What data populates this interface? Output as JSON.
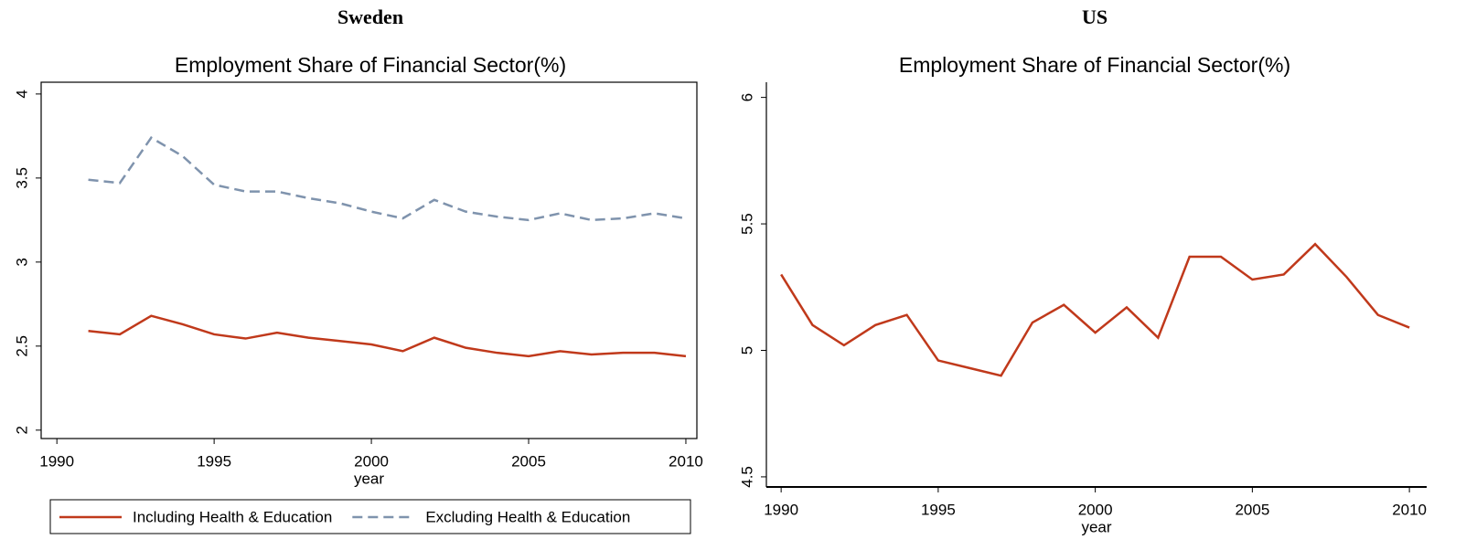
{
  "chart_data": [
    {
      "type": "line",
      "panel_title": "Sweden",
      "title": "Employment Share of Financial Sector(%)",
      "xlabel": "year",
      "x": [
        1991,
        1992,
        1993,
        1994,
        1995,
        1996,
        1997,
        1998,
        1999,
        2000,
        2001,
        2002,
        2003,
        2004,
        2005,
        2006,
        2007,
        2008,
        2009,
        2010
      ],
      "series": [
        {
          "name": "Including Health & Education",
          "color": "#c0391b",
          "dashed": false,
          "values": [
            2.59,
            2.57,
            2.68,
            2.63,
            2.57,
            2.545,
            2.58,
            2.55,
            2.53,
            2.51,
            2.47,
            2.55,
            2.49,
            2.46,
            2.44,
            2.47,
            2.45,
            2.46,
            2.46,
            2.44
          ]
        },
        {
          "name": "Excluding Health & Education",
          "color": "#7f93ad",
          "dashed": true,
          "values": [
            3.49,
            3.47,
            3.74,
            3.63,
            3.46,
            3.42,
            3.42,
            3.38,
            3.35,
            3.3,
            3.26,
            3.37,
            3.3,
            3.27,
            3.25,
            3.29,
            3.25,
            3.26,
            3.29,
            3.26
          ]
        }
      ],
      "xlim": [
        1989.5,
        2010.35
      ],
      "xticks": [
        1990,
        1995,
        2000,
        2005,
        2010
      ],
      "ylim": [
        1.95,
        4.07
      ],
      "yticks": [
        2,
        2.5,
        3,
        3.5,
        4
      ],
      "legend": "bottom",
      "frame": true
    },
    {
      "type": "line",
      "panel_title": "US",
      "title": "Employment Share of Financial Sector(%)",
      "xlabel": "year",
      "x": [
        1990,
        1991,
        1992,
        1993,
        1994,
        1995,
        1996,
        1997,
        1998,
        1999,
        2000,
        2001,
        2002,
        2003,
        2004,
        2005,
        2006,
        2007,
        2008,
        2009,
        2010
      ],
      "series": [
        {
          "color": "#c0391b",
          "dashed": false,
          "values": [
            5.3,
            5.1,
            5.02,
            5.1,
            5.14,
            4.96,
            4.93,
            4.9,
            5.11,
            5.18,
            5.07,
            5.17,
            5.05,
            5.37,
            5.37,
            5.28,
            5.3,
            5.42,
            5.29,
            5.14,
            5.09
          ]
        }
      ],
      "xlim": [
        1989.53,
        2010.55
      ],
      "xticks": [
        1990,
        1995,
        2000,
        2005,
        2010
      ],
      "ylim": [
        4.46,
        6.06
      ],
      "yticks": [
        4.5,
        5,
        5.5,
        6
      ],
      "frame": false
    }
  ]
}
